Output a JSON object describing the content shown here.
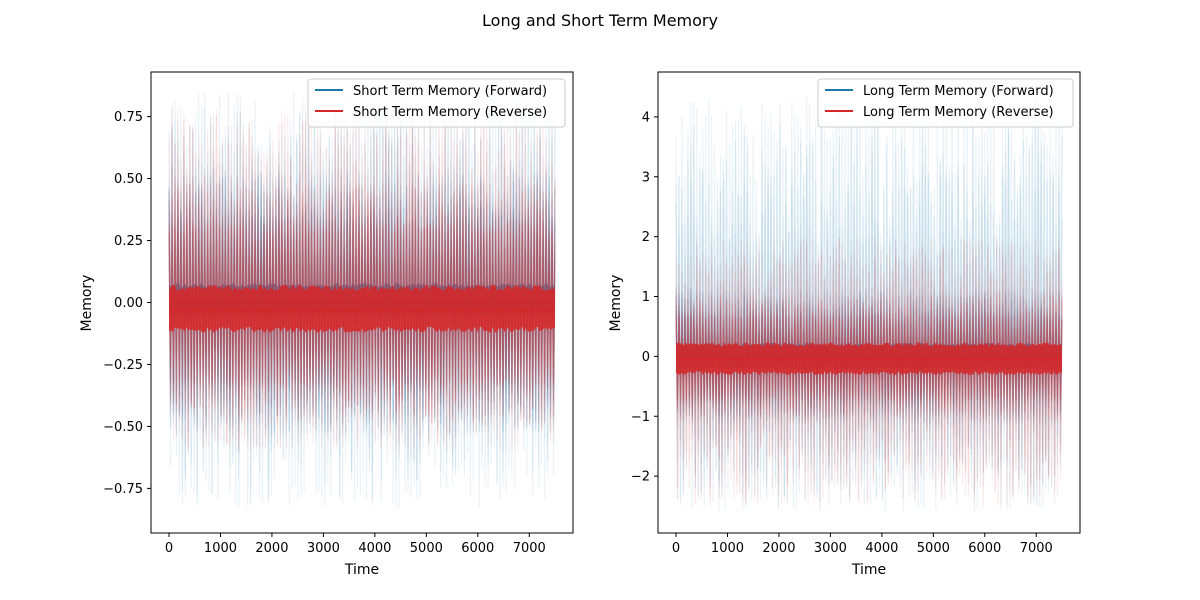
{
  "figure_title": "Long and Short Term Memory",
  "colors": {
    "forward": "#1f77b4",
    "reverse": "#d62728",
    "axis": "#000000"
  },
  "chart_data": [
    {
      "type": "line",
      "title": "",
      "xlabel": "Time",
      "ylabel": "Memory",
      "xlim": [
        -350,
        7850
      ],
      "ylim": [
        -0.93,
        0.93
      ],
      "xticks": [
        0,
        1000,
        2000,
        3000,
        4000,
        5000,
        6000,
        7000
      ],
      "xtick_labels": [
        "0",
        "1000",
        "2000",
        "3000",
        "4000",
        "5000",
        "6000",
        "7000"
      ],
      "yticks": [
        -0.75,
        -0.5,
        -0.25,
        0.0,
        0.25,
        0.5,
        0.75
      ],
      "ytick_labels": [
        "−0.75",
        "−0.50",
        "−0.25",
        "0.00",
        "0.25",
        "0.50",
        "0.75"
      ],
      "legend_position": "top-right",
      "grid": false,
      "x_range": [
        0,
        7500
      ],
      "series": [
        {
          "name": "Short Term Memory (Forward)",
          "color": "#1f77b4",
          "center": [
            {
              "x": 0,
              "y": 0.0
            },
            {
              "x": 7500,
              "y": 0.0
            }
          ],
          "core_band": [
            -0.05,
            0.07
          ],
          "envelope_typical": [
            -0.6,
            0.6
          ],
          "envelope_extreme": [
            -0.83,
            0.85
          ]
        },
        {
          "name": "Short Term Memory (Reverse)",
          "color": "#d62728",
          "center": [
            {
              "x": 0,
              "y": -0.03
            },
            {
              "x": 7500,
              "y": -0.03
            }
          ],
          "core_band": [
            -0.11,
            0.06
          ],
          "envelope_typical": [
            -0.55,
            0.55
          ],
          "envelope_extreme": [
            -0.6,
            0.8
          ]
        }
      ]
    },
    {
      "type": "line",
      "title": "",
      "xlabel": "Time",
      "ylabel": "Memory",
      "xlim": [
        -350,
        7850
      ],
      "ylim": [
        -2.95,
        4.75
      ],
      "xticks": [
        0,
        1000,
        2000,
        3000,
        4000,
        5000,
        6000,
        7000
      ],
      "xtick_labels": [
        "0",
        "1000",
        "2000",
        "3000",
        "4000",
        "5000",
        "6000",
        "7000"
      ],
      "yticks": [
        -2,
        -1,
        0,
        1,
        2,
        3,
        4
      ],
      "ytick_labels": [
        "−2",
        "−1",
        "0",
        "1",
        "2",
        "3",
        "4"
      ],
      "legend_position": "top-right",
      "grid": false,
      "x_range": [
        0,
        7500
      ],
      "series": [
        {
          "name": "Long Term Memory (Forward)",
          "color": "#1f77b4",
          "center": [
            {
              "x": 0,
              "y": 0.0
            },
            {
              "x": 7500,
              "y": 0.0
            }
          ],
          "core_band": [
            -0.2,
            0.2
          ],
          "envelope_typical": [
            -1.3,
            1.3
          ],
          "envelope_extreme": [
            -2.6,
            4.4
          ]
        },
        {
          "name": "Long Term Memory (Reverse)",
          "color": "#d62728",
          "center": [
            {
              "x": 0,
              "y": -0.05
            },
            {
              "x": 7500,
              "y": -0.05
            }
          ],
          "core_band": [
            -0.28,
            0.2
          ],
          "envelope_typical": [
            -1.2,
            1.2
          ],
          "envelope_extreme": [
            -2.5,
            2.0
          ]
        }
      ]
    }
  ]
}
